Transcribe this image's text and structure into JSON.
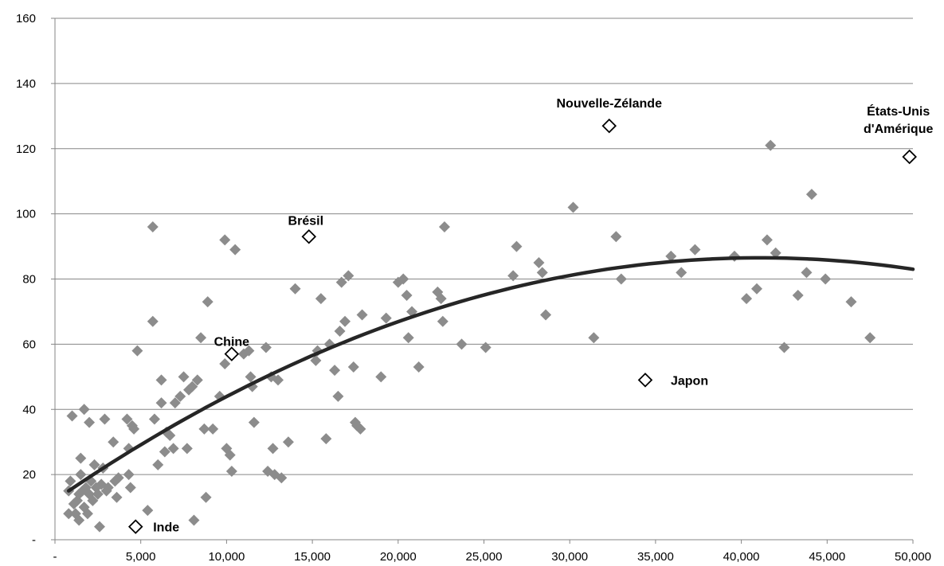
{
  "chart_data": {
    "type": "scatter",
    "title": "",
    "xlabel": "",
    "ylabel": "",
    "xlim": [
      0,
      50000
    ],
    "ylim": [
      0,
      160
    ],
    "x_ticks": [
      0,
      5000,
      10000,
      15000,
      20000,
      25000,
      30000,
      35000,
      40000,
      45000,
      50000
    ],
    "x_tick_labels": [
      "-",
      "5,000",
      "10,000",
      "15,000",
      "20,000",
      "25,000",
      "30,000",
      "35,000",
      "40,000",
      "45,000",
      "50,000"
    ],
    "y_ticks": [
      0,
      20,
      40,
      60,
      80,
      100,
      120,
      140,
      160
    ],
    "y_tick_labels": [
      "-",
      "20",
      "40",
      "60",
      "80",
      "100",
      "120",
      "140",
      "160"
    ],
    "grid": "horizontal",
    "legend": "none",
    "colors": {
      "points": "#8c8c8c",
      "highlight_stroke": "#000000",
      "trend": "#262626",
      "grid": "#868686"
    },
    "series": [
      {
        "marker": "filled-diamond",
        "points": [
          [
            800,
            8
          ],
          [
            800,
            15
          ],
          [
            900,
            18
          ],
          [
            1000,
            38
          ],
          [
            1100,
            11
          ],
          [
            1200,
            8
          ],
          [
            1300,
            12
          ],
          [
            1400,
            14
          ],
          [
            1400,
            6
          ],
          [
            1500,
            25
          ],
          [
            1500,
            20
          ],
          [
            1600,
            15
          ],
          [
            1700,
            10
          ],
          [
            1700,
            40
          ],
          [
            1800,
            16
          ],
          [
            1900,
            8
          ],
          [
            2000,
            14
          ],
          [
            2000,
            36
          ],
          [
            2100,
            18
          ],
          [
            2200,
            12
          ],
          [
            2300,
            23
          ],
          [
            2400,
            16
          ],
          [
            2500,
            14
          ],
          [
            2600,
            4
          ],
          [
            2700,
            17
          ],
          [
            2800,
            22
          ],
          [
            2900,
            37
          ],
          [
            3000,
            15
          ],
          [
            3100,
            16
          ],
          [
            3400,
            30
          ],
          [
            3500,
            18
          ],
          [
            3600,
            13
          ],
          [
            3700,
            19
          ],
          [
            4200,
            37
          ],
          [
            4300,
            20
          ],
          [
            4300,
            28
          ],
          [
            4400,
            16
          ],
          [
            4500,
            35
          ],
          [
            4600,
            34
          ],
          [
            4800,
            58
          ],
          [
            5400,
            9
          ],
          [
            5700,
            96
          ],
          [
            5700,
            67
          ],
          [
            5800,
            37
          ],
          [
            6000,
            23
          ],
          [
            6200,
            42
          ],
          [
            6200,
            49
          ],
          [
            6400,
            27
          ],
          [
            6500,
            33
          ],
          [
            6700,
            32
          ],
          [
            6900,
            28
          ],
          [
            7000,
            42
          ],
          [
            7300,
            44
          ],
          [
            7500,
            50
          ],
          [
            7700,
            28
          ],
          [
            7800,
            46
          ],
          [
            8000,
            47
          ],
          [
            8100,
            6
          ],
          [
            8300,
            49
          ],
          [
            8500,
            62
          ],
          [
            8700,
            34
          ],
          [
            8800,
            13
          ],
          [
            8900,
            73
          ],
          [
            9200,
            34
          ],
          [
            9600,
            44
          ],
          [
            9900,
            54
          ],
          [
            9900,
            92
          ],
          [
            10000,
            28
          ],
          [
            10200,
            26
          ],
          [
            10300,
            21
          ],
          [
            10500,
            89
          ],
          [
            11000,
            57
          ],
          [
            11300,
            58
          ],
          [
            11400,
            50
          ],
          [
            11500,
            47
          ],
          [
            11600,
            36
          ],
          [
            12300,
            59
          ],
          [
            12400,
            21
          ],
          [
            12600,
            50
          ],
          [
            12700,
            28
          ],
          [
            12800,
            20
          ],
          [
            13000,
            49
          ],
          [
            13200,
            19
          ],
          [
            13600,
            30
          ],
          [
            14000,
            77
          ],
          [
            15200,
            55
          ],
          [
            15300,
            58
          ],
          [
            15500,
            74
          ],
          [
            15800,
            31
          ],
          [
            16000,
            60
          ],
          [
            16300,
            52
          ],
          [
            16500,
            44
          ],
          [
            16600,
            64
          ],
          [
            16700,
            79
          ],
          [
            16900,
            67
          ],
          [
            17100,
            81
          ],
          [
            17400,
            53
          ],
          [
            17500,
            36
          ],
          [
            17600,
            35
          ],
          [
            17800,
            34
          ],
          [
            17900,
            69
          ],
          [
            19000,
            50
          ],
          [
            19300,
            68
          ],
          [
            20000,
            79
          ],
          [
            20300,
            80
          ],
          [
            20500,
            75
          ],
          [
            20600,
            62
          ],
          [
            20800,
            70
          ],
          [
            21200,
            53
          ],
          [
            22300,
            76
          ],
          [
            22500,
            74
          ],
          [
            22600,
            67
          ],
          [
            22700,
            96
          ],
          [
            23700,
            60
          ],
          [
            25100,
            59
          ],
          [
            26700,
            81
          ],
          [
            26900,
            90
          ],
          [
            28200,
            85
          ],
          [
            28400,
            82
          ],
          [
            28600,
            69
          ],
          [
            30200,
            102
          ],
          [
            31400,
            62
          ],
          [
            32700,
            93
          ],
          [
            33000,
            80
          ],
          [
            35900,
            87
          ],
          [
            36500,
            82
          ],
          [
            37300,
            89
          ],
          [
            39600,
            87
          ],
          [
            40300,
            74
          ],
          [
            40900,
            77
          ],
          [
            41500,
            92
          ],
          [
            41700,
            121
          ],
          [
            42000,
            88
          ],
          [
            42500,
            59
          ],
          [
            43300,
            75
          ],
          [
            43800,
            82
          ],
          [
            44100,
            106
          ],
          [
            44900,
            80
          ],
          [
            46400,
            73
          ],
          [
            47500,
            62
          ]
        ]
      },
      {
        "marker": "hollow-diamond",
        "points": [
          {
            "label": "Inde",
            "x": 4700,
            "y": 4
          },
          {
            "label": "Chine",
            "x": 10300,
            "y": 57
          },
          {
            "label": "Brésil",
            "x": 14800,
            "y": 93
          },
          {
            "label": "Nouvelle-Zélande",
            "x": 32300,
            "y": 127
          },
          {
            "label": "Japon",
            "x": 34400,
            "y": 49
          },
          {
            "label": "États-Unis d'Amérique",
            "x": 49800,
            "y": 117.5
          }
        ]
      }
    ],
    "trendline": {
      "type": "polynomial-2",
      "x_start": 800,
      "x_end": 50000,
      "y_start": 15,
      "y_peak": 86.5,
      "x_peak": 41000,
      "y_end": 83
    }
  }
}
